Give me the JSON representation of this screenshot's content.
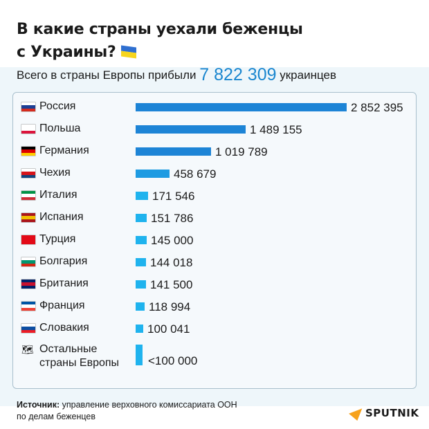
{
  "header": {
    "title_line1": "В какие страны уехали беженцы",
    "title_line2": "с Украины?",
    "flag_icon": "ukraine-flag"
  },
  "subtitle": {
    "prefix": "Всего в страны Европы прибыли",
    "total": "7 822 309",
    "suffix": "украинцев",
    "accent_color": "#1a86cf"
  },
  "chart_data": {
    "type": "bar",
    "orientation": "horizontal",
    "categories": [
      "Россия",
      "Польша",
      "Германия",
      "Чехия",
      "Италия",
      "Испания",
      "Турция",
      "Болгария",
      "Британия",
      "Франция",
      "Словакия",
      "Остальные страны Европы"
    ],
    "values": [
      2852395,
      1489155,
      1019789,
      458679,
      171546,
      151786,
      145000,
      144018,
      141500,
      118994,
      100041,
      null
    ],
    "value_labels": [
      "2 852 395",
      "1 489 155",
      "1 019 789",
      "458 679",
      "171 546",
      "151 786",
      "145 000",
      "144 018",
      "141 500",
      "118 994",
      "100 041",
      "<100 000"
    ],
    "flags": [
      [
        "#ffffff",
        "#1c3f94",
        "#d52b1e"
      ],
      [
        "#ffffff",
        "#ffffff",
        "#dc143c"
      ],
      [
        "#000000",
        "#dd0000",
        "#ffce00"
      ],
      [
        "#ffffff",
        "#d7141a",
        "#11457e"
      ],
      [
        "#009246",
        "#ffffff",
        "#ce2b37"
      ],
      [
        "#aa151b",
        "#f1bf00",
        "#aa151b"
      ],
      [
        "#e30a17",
        "#e30a17",
        "#e30a17"
      ],
      [
        "#ffffff",
        "#00966e",
        "#d62612"
      ],
      [
        "#012169",
        "#c8102e",
        "#012169"
      ],
      [
        "#0055a4",
        "#ffffff",
        "#ef4135"
      ],
      [
        "#ffffff",
        "#0b4ea2",
        "#ee1c25"
      ],
      null
    ],
    "bar_colors": {
      "large": "#1d84d6",
      "medium": "#1e9be2",
      "small": "#1fb3ee"
    },
    "grid": false
  },
  "labels": {
    "other_line1": "Остальные",
    "other_line2": "страны Европы"
  },
  "footer": {
    "source_label": "Источник:",
    "source_text": "управление верховного комиссариата ООН",
    "source_text2": "по делам беженцев",
    "logo": "SPUTNIK"
  }
}
